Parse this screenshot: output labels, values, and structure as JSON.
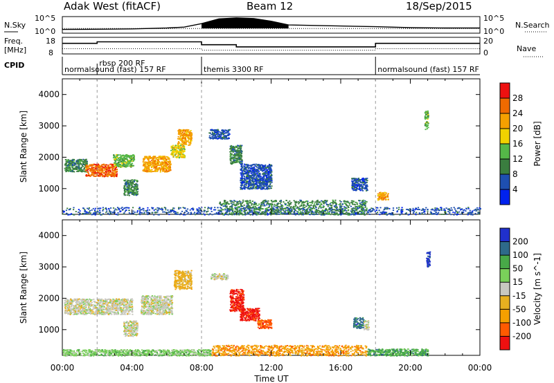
{
  "header": {
    "radar": "Adak West (fitACF)",
    "beam": "Beam 12",
    "date": "18/Sep/2015"
  },
  "panel_labels": {
    "nsky": "N.Sky",
    "nsearch": "N.Search",
    "freq_top": "Freq.",
    "freq_unit": "[MHz]",
    "nave": "Nave",
    "cpid": "CPID"
  },
  "ticks": {
    "nsky_hi": "10^5",
    "nsky_lo": "10^0",
    "freq_hi": "18",
    "freq_lo": "8",
    "nave_hi": "20",
    "nave_lo": "0"
  },
  "cpid_segments": [
    {
      "label": "normalsound (fast) 157 RF",
      "start_h": 0.0,
      "end_h": 2.0
    },
    {
      "label": "rbsp 200 RF",
      "start_h": 2.0,
      "end_h": 8.0
    },
    {
      "label": "themis 3300 RF",
      "start_h": 8.0,
      "end_h": 18.0
    },
    {
      "label": "normalsound (fast) 157 RF",
      "start_h": 18.0,
      "end_h": 24.0
    }
  ],
  "colors": {
    "power": [
      "#0022ee",
      "#1e4fb0",
      "#3a7d3f",
      "#55b848",
      "#f0d200",
      "#f5a000",
      "#f06a00",
      "#ee1010"
    ],
    "velocity": [
      "#ee1010",
      "#ff5a00",
      "#f5a000",
      "#e7b020",
      "#c8c8c0",
      "#7ad05a",
      "#48a948",
      "#2e6a8a",
      "#2030cc"
    ]
  },
  "chart_data": [
    {
      "type": "line",
      "title": "N.Sky / N.Search",
      "x": [
        0,
        2,
        4,
        6,
        7,
        8,
        9,
        10,
        11,
        12,
        13,
        18,
        20,
        22,
        24
      ],
      "series": [
        {
          "name": "N.Sky",
          "values": [
            10,
            12,
            15,
            30,
            60,
            800,
            30000,
            60000,
            40000,
            5000,
            300,
            80,
            40,
            30,
            30
          ]
        },
        {
          "name": "N.Search",
          "values": [
            20,
            20,
            20,
            20,
            20,
            20,
            20,
            20,
            20,
            20,
            20,
            20,
            20,
            20,
            20
          ]
        }
      ],
      "ylabel": "N.Sky",
      "y2label": "N.Search",
      "log": true,
      "ylim": [
        1,
        100000
      ]
    },
    {
      "type": "line",
      "title": "Freq. / Nave",
      "x": [
        0,
        2,
        2,
        8,
        8,
        10,
        10,
        18,
        18,
        24
      ],
      "series": [
        {
          "name": "Freq.",
          "values": [
            14.5,
            14.5,
            15.5,
            15.5,
            13.6,
            13.6,
            12.2,
            12.2,
            14.5,
            14.5
          ]
        },
        {
          "name": "Nave",
          "values": [
            6,
            6,
            6,
            6,
            4,
            4,
            4,
            4,
            6,
            6
          ]
        }
      ],
      "ylabel": "[MHz]",
      "y2label": "Nave",
      "ylim": [
        8,
        18
      ],
      "y2lim": [
        0,
        20
      ]
    },
    {
      "type": "heatmap",
      "title": "Power",
      "xlabel": "Time UT",
      "ylabel": "Slant Range [km]",
      "colorbar_label": "Power [dB]",
      "colorbar_ticks": [
        4,
        8,
        12,
        16,
        20,
        24,
        28
      ],
      "xlim": [
        0,
        24
      ],
      "ylim": [
        180,
        4500
      ],
      "x_ticks": [
        "00:00",
        "04:00",
        "08:00",
        "12:00",
        "16:00",
        "20:00",
        "00:00"
      ],
      "y_ticks": [
        1000,
        2000,
        3000,
        4000
      ],
      "patches": [
        {
          "t0": 0.1,
          "t1": 1.4,
          "r0": 1550,
          "r1": 1950,
          "level": 2
        },
        {
          "t0": 1.3,
          "t1": 3.1,
          "r0": 1400,
          "r1": 1800,
          "level": 6
        },
        {
          "t0": 2.9,
          "t1": 4.1,
          "r0": 1700,
          "r1": 2100,
          "level": 3
        },
        {
          "t0": 3.5,
          "t1": 4.3,
          "r0": 800,
          "r1": 1300,
          "level": 2
        },
        {
          "t0": 4.6,
          "t1": 6.2,
          "r0": 1550,
          "r1": 2050,
          "level": 5
        },
        {
          "t0": 6.2,
          "t1": 7.0,
          "r0": 2000,
          "r1": 2400,
          "level": 4
        },
        {
          "t0": 6.6,
          "t1": 7.4,
          "r0": 2400,
          "r1": 2900,
          "level": 5
        },
        {
          "t0": 8.4,
          "t1": 9.6,
          "r0": 2600,
          "r1": 2900,
          "level": 1
        },
        {
          "t0": 9.6,
          "t1": 10.3,
          "r0": 1800,
          "r1": 2400,
          "level": 2
        },
        {
          "t0": 10.2,
          "t1": 12.0,
          "r0": 1000,
          "r1": 1800,
          "level": 1
        },
        {
          "t0": 16.6,
          "t1": 17.5,
          "r0": 950,
          "r1": 1350,
          "level": 1
        },
        {
          "t0": 18.1,
          "t1": 18.7,
          "r0": 650,
          "r1": 900,
          "level": 5
        },
        {
          "t0": 20.8,
          "t1": 21.0,
          "r0": 2900,
          "r1": 3500,
          "level": 3
        },
        {
          "t0": 0.0,
          "t1": 24.0,
          "r0": 180,
          "r1": 420,
          "level": 1
        },
        {
          "t0": 9.0,
          "t1": 17.5,
          "r0": 180,
          "r1": 650,
          "level": 2
        }
      ]
    },
    {
      "type": "heatmap",
      "title": "Velocity",
      "xlabel": "Time UT",
      "ylabel": "Slant Range [km]",
      "colorbar_label": "Velocity [m s^-1]",
      "colorbar_ticks": [
        "200",
        "100",
        "50",
        "15",
        "-15",
        "-50",
        "-100",
        "-200"
      ],
      "xlim": [
        0,
        24
      ],
      "ylim": [
        180,
        4500
      ],
      "x_ticks": [
        "00:00",
        "04:00",
        "08:00",
        "12:00",
        "16:00",
        "20:00",
        "00:00"
      ],
      "y_ticks": [
        1000,
        2000,
        3000,
        4000
      ],
      "patches": [
        {
          "t0": 0.1,
          "t1": 4.0,
          "r0": 1500,
          "r1": 2000,
          "level": 4
        },
        {
          "t0": 3.5,
          "t1": 4.3,
          "r0": 800,
          "r1": 1300,
          "level": 4
        },
        {
          "t0": 4.5,
          "t1": 6.3,
          "r0": 1500,
          "r1": 2100,
          "level": 4
        },
        {
          "t0": 6.4,
          "t1": 7.4,
          "r0": 2300,
          "r1": 2900,
          "level": 3
        },
        {
          "t0": 8.5,
          "t1": 9.5,
          "r0": 2600,
          "r1": 2800,
          "level": 4
        },
        {
          "t0": 9.6,
          "t1": 10.4,
          "r0": 1600,
          "r1": 2300,
          "level": 0
        },
        {
          "t0": 10.2,
          "t1": 11.3,
          "r0": 1300,
          "r1": 1700,
          "level": 0
        },
        {
          "t0": 11.2,
          "t1": 12.0,
          "r0": 1050,
          "r1": 1350,
          "level": 1
        },
        {
          "t0": 16.7,
          "t1": 17.3,
          "r0": 1050,
          "r1": 1400,
          "level": 7
        },
        {
          "t0": 17.3,
          "t1": 17.6,
          "r0": 1000,
          "r1": 1300,
          "level": 4
        },
        {
          "t0": 20.9,
          "t1": 21.1,
          "r0": 3000,
          "r1": 3500,
          "level": 8
        },
        {
          "t0": 8.5,
          "t1": 17.5,
          "r0": 180,
          "r1": 520,
          "level": 2
        },
        {
          "t0": 17.5,
          "t1": 21.0,
          "r0": 180,
          "r1": 400,
          "level": 6
        },
        {
          "t0": 0.0,
          "t1": 8.5,
          "r0": 180,
          "r1": 380,
          "level": 5
        }
      ]
    }
  ]
}
